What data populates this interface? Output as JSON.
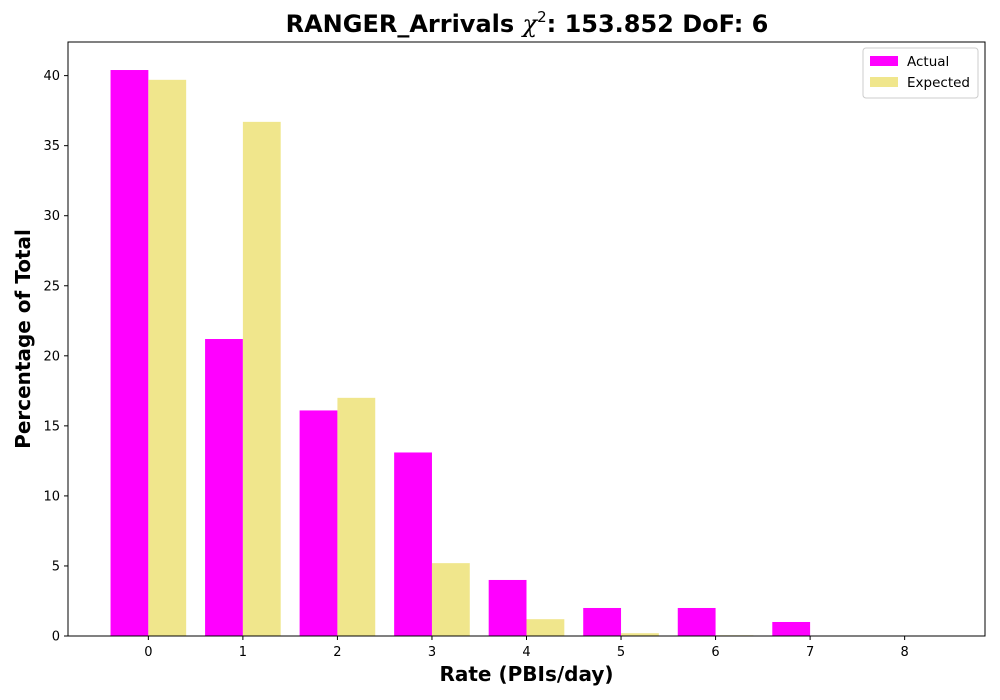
{
  "chart_data": {
    "type": "bar",
    "title_prefix": "RANGER_Arrivals ",
    "title_chi": "χ",
    "title_sup": "2",
    "title_suffix": ": 153.852 DoF: 6",
    "xlabel": "Rate (PBIs/day)",
    "ylabel": "Percentage of Total",
    "categories": [
      0,
      1,
      2,
      3,
      4,
      5,
      6,
      7,
      8
    ],
    "series": [
      {
        "name": "Actual",
        "color": "#ff00ff",
        "values": [
          40.4,
          21.2,
          16.1,
          13.1,
          4.0,
          2.0,
          2.0,
          1.0,
          0.0
        ]
      },
      {
        "name": "Expected",
        "color": "#f0e68c",
        "values": [
          39.7,
          36.7,
          17.0,
          5.2,
          1.2,
          0.2,
          0.05,
          0.0,
          0.0
        ]
      }
    ],
    "yticks": [
      0,
      5,
      10,
      15,
      20,
      25,
      30,
      35,
      40
    ],
    "xlim": [
      -0.85,
      8.85
    ],
    "ylim": [
      0,
      42.4
    ],
    "legend_position": "top-right",
    "grid": false
  }
}
